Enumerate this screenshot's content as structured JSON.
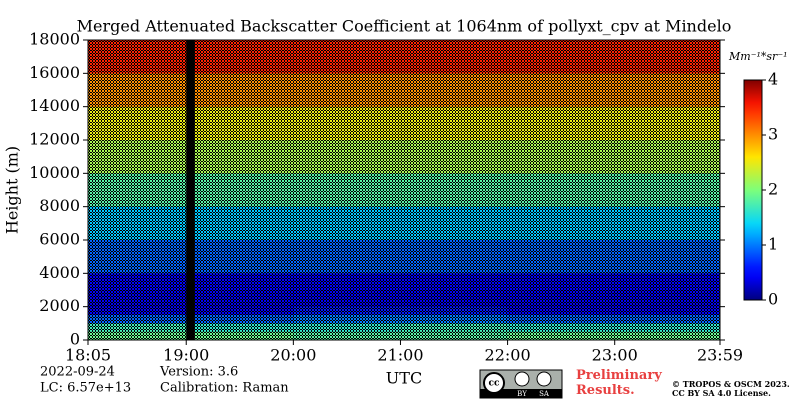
{
  "chart_data": {
    "type": "heatmap",
    "title": "Merged Attenuated Backscatter Coefficient at 1064nm of pollyxt_cpv at Mindelo",
    "y_label": "Height (m)",
    "x_label": "UTC",
    "xlim": [
      18.083,
      23.983
    ],
    "xticks": [
      {
        "value": 18.083,
        "label": "18:05"
      },
      {
        "value": 19,
        "label": "19:00"
      },
      {
        "value": 20,
        "label": "20:00"
      },
      {
        "value": 21,
        "label": "21:00"
      },
      {
        "value": 22,
        "label": "22:00"
      },
      {
        "value": 23,
        "label": "23:00"
      },
      {
        "value": 23.983,
        "label": "23:59"
      }
    ],
    "ylim": [
      0,
      18000
    ],
    "yticks": [
      0,
      2000,
      4000,
      6000,
      8000,
      10000,
      12000,
      14000,
      16000,
      18000
    ],
    "x_edges": [
      18.083,
      19,
      19.08,
      20,
      21,
      22,
      23,
      23.983
    ],
    "y_edges": [
      0,
      500,
      1000,
      1500,
      2000,
      3000,
      4000,
      6000,
      8000,
      10000,
      12000,
      14000,
      16000,
      18000
    ],
    "values": [
      [
        1.9,
        null,
        1.9,
        1.8,
        1.8,
        1.9,
        1.9
      ],
      [
        1.7,
        null,
        1.6,
        1.6,
        1.7,
        1.6,
        1.6
      ],
      [
        0.9,
        null,
        0.9,
        1.0,
        1.0,
        0.9,
        0.9
      ],
      [
        0.5,
        null,
        0.5,
        0.6,
        0.6,
        0.5,
        0.5
      ],
      [
        0.4,
        null,
        0.4,
        0.4,
        0.4,
        0.4,
        0.4
      ],
      [
        0.5,
        null,
        0.5,
        0.5,
        0.5,
        0.5,
        0.5
      ],
      [
        0.9,
        null,
        0.9,
        0.9,
        0.9,
        0.9,
        0.9
      ],
      [
        1.3,
        null,
        1.3,
        1.3,
        1.3,
        1.3,
        1.3
      ],
      [
        1.8,
        null,
        1.8,
        1.8,
        1.8,
        1.8,
        1.8
      ],
      [
        2.2,
        null,
        2.2,
        2.2,
        2.2,
        2.2,
        2.2
      ],
      [
        2.5,
        null,
        2.5,
        2.5,
        2.5,
        2.5,
        2.5
      ],
      [
        3.0,
        null,
        3.0,
        3.0,
        3.0,
        3.0,
        3.0
      ],
      [
        3.5,
        null,
        3.5,
        3.5,
        3.5,
        3.5,
        3.5
      ]
    ],
    "colormap": "jet",
    "clim": [
      0,
      4
    ],
    "cticks": [
      0,
      1,
      2,
      3,
      4
    ],
    "colorbar_label": "Mm⁻¹*sr⁻¹",
    "footer": {
      "date": "2022-09-24",
      "lc": "LC: 6.57e+13",
      "version": "Version: 3.6",
      "calibration": "Calibration: Raman",
      "badge": [
        "BY",
        "SA"
      ],
      "notice": "Preliminary Results.",
      "copyright": "© TROPOS & OSCM 2023.",
      "license": "CC BY SA 4.0 License."
    }
  }
}
